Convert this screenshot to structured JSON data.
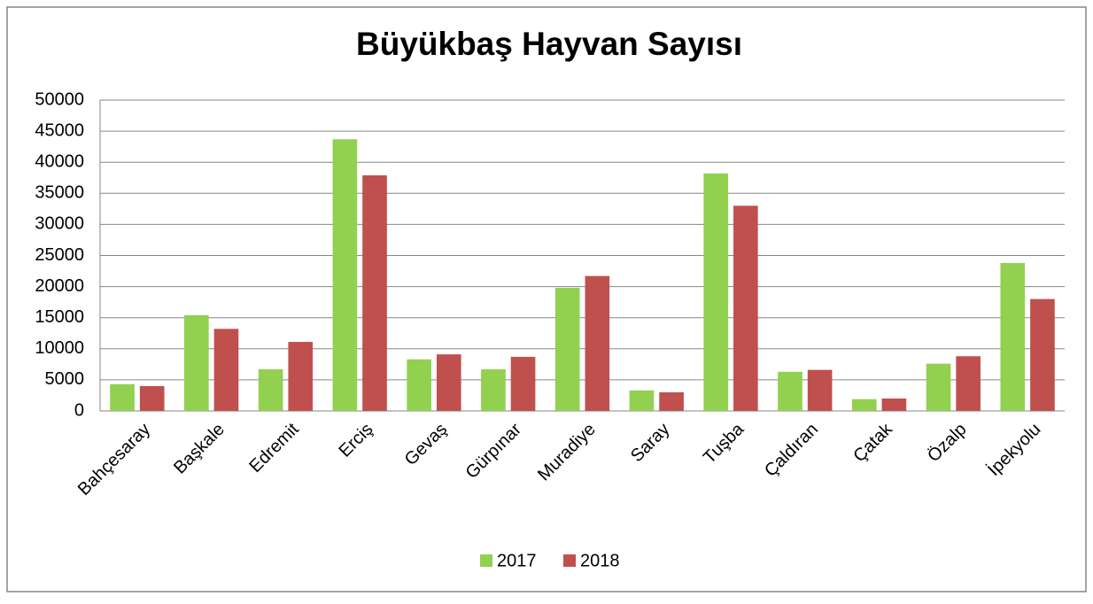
{
  "chart_data": {
    "type": "bar",
    "title": "Büyükbaş Hayvan Sayısı",
    "categories": [
      "Bahçesaray",
      "Başkale",
      "Edremit",
      "Erciş",
      "Gevaş",
      "Gürpınar",
      "Muradiye",
      "Saray",
      "Tuşba",
      "Çaldıran",
      "Çatak",
      "Özalp",
      "İpekyolu"
    ],
    "series": [
      {
        "name": "2017",
        "color": "#92d050",
        "values": [
          4300,
          15400,
          6700,
          43700,
          8300,
          6700,
          19800,
          3300,
          38200,
          6300,
          1900,
          7600,
          23800
        ]
      },
      {
        "name": "2018",
        "color": "#c0504d",
        "values": [
          4000,
          13200,
          11100,
          37900,
          9100,
          8700,
          21700,
          3000,
          33000,
          6600,
          2000,
          8800,
          18000
        ]
      }
    ],
    "ylim": [
      0,
      50000
    ],
    "yticks": [
      0,
      5000,
      10000,
      15000,
      20000,
      25000,
      30000,
      35000,
      40000,
      45000,
      50000
    ],
    "grid": true,
    "legend": "bottom"
  }
}
